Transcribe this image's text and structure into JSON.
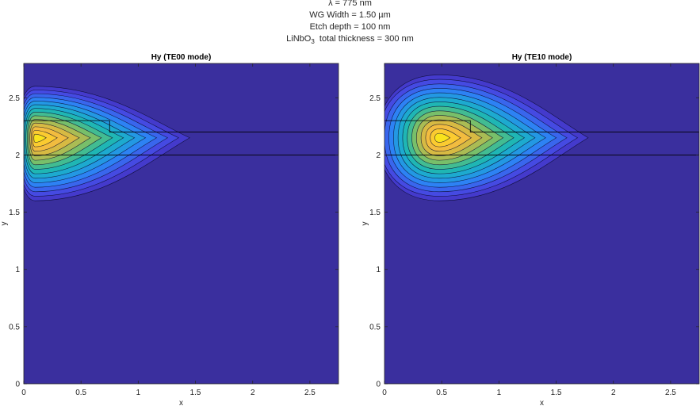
{
  "header": {
    "line1": "λ = 775 nm",
    "line2": "WG Width = 1.50 µm",
    "line3": "Etch depth = 100 nm",
    "line4_pre": "LiNbO",
    "line4_sub": "3",
    "line4_post": "  total thickness = 300 nm"
  },
  "colors": {
    "background": "#3a2f9e",
    "colormap": [
      "#3e26a8",
      "#4746e0",
      "#2f7ef7",
      "#1ca6d9",
      "#20bbaa",
      "#7cbf67",
      "#d0ba44",
      "#fcbd3d",
      "#f9e31c"
    ],
    "contour": "#0b0b2e"
  },
  "chart_data": [
    {
      "type": "heatmap",
      "title": "Hy (TE00 mode)",
      "xlabel": "x",
      "ylabel": "y",
      "xlim": [
        0,
        2.75
      ],
      "ylim": [
        0,
        2.8
      ],
      "xticks": [
        "0",
        "0.5",
        "1",
        "1.5",
        "2",
        "2.5"
      ],
      "yticks": [
        "0",
        "0.5",
        "1",
        "1.5",
        "2",
        "2.5"
      ],
      "field_peak": [
        0.1,
        2.15
      ],
      "field_extent": {
        "x_max": 1.45,
        "y_min": 1.6,
        "y_max": 2.6
      },
      "contour_levels": 14,
      "waveguide_outline": [
        [
          0,
          2.3
        ],
        [
          0.75,
          2.3
        ],
        [
          0.75,
          2.2
        ],
        [
          2.75,
          2.2
        ],
        [
          2.75,
          2.0
        ],
        [
          0,
          2.0
        ]
      ]
    },
    {
      "type": "heatmap",
      "title": "Hy (TE10 mode)",
      "xlabel": "x",
      "ylabel": "y",
      "xlim": [
        0,
        2.75
      ],
      "ylim": [
        0,
        2.8
      ],
      "xticks": [
        "0",
        "0.5",
        "1",
        "1.5",
        "2",
        "2.5"
      ],
      "yticks": [
        "0",
        "0.5",
        "1",
        "1.5",
        "2",
        "2.5"
      ],
      "field_peak": [
        0.48,
        2.15
      ],
      "field_extent": {
        "x_max": 1.78,
        "y_min": 1.6,
        "y_max": 2.7
      },
      "contour_levels": 14,
      "waveguide_outline": [
        [
          0,
          2.3
        ],
        [
          0.75,
          2.3
        ],
        [
          0.75,
          2.2
        ],
        [
          2.75,
          2.2
        ],
        [
          2.75,
          2.0
        ],
        [
          0,
          2.0
        ]
      ]
    }
  ]
}
